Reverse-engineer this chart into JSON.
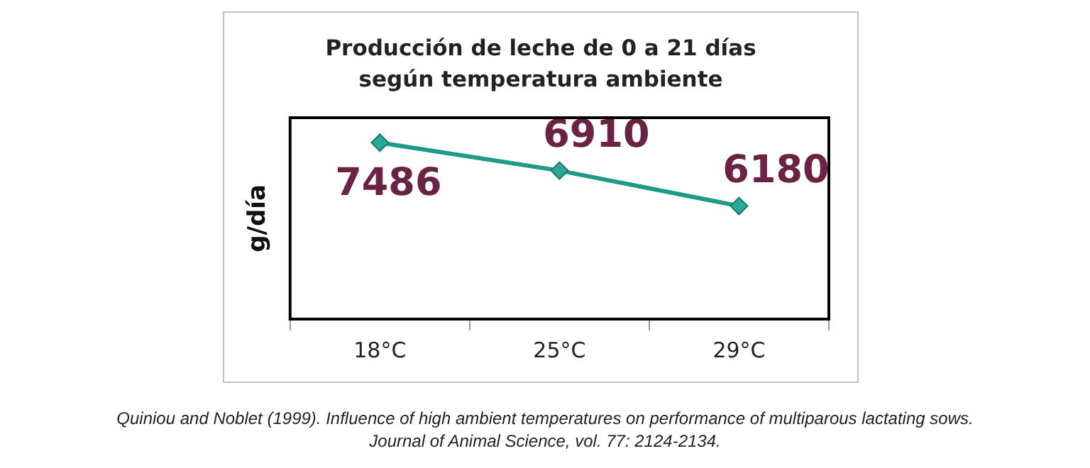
{
  "chart_data": {
    "type": "line",
    "title": "Producción de leche de 0 a 21 días según temperatura ambiente",
    "ylabel": "g/día",
    "categories": [
      "18°C",
      "25°C",
      "29°C"
    ],
    "series": [
      {
        "color": "#1f9a88",
        "values": [
          7486,
          6910,
          6180
        ]
      }
    ],
    "ylim": [
      3850,
      8000
    ],
    "tick_labels": "x",
    "marker": "diamond",
    "line_style": "solid",
    "data_labels": true,
    "annotations": [
      "Quiniou and Noblet (1999). Influence of high ambient temperatures on performance of multiparous lactating sows. Journal of Animal Science, vol. 77: 2124-2134."
    ]
  }
}
